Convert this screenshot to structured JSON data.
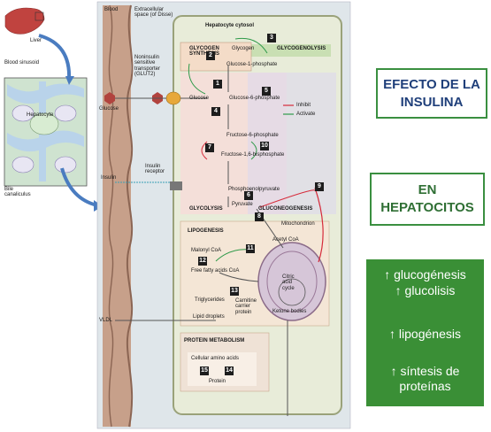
{
  "right_panel": {
    "box1": "EFECTO DE LA INSULINA",
    "box2": "EN HEPATOCITOS",
    "effects": [
      "↑ glucogénesis",
      "↑ glucolisis",
      "↑ lipogénesis",
      "↑ síntesis de proteínas"
    ]
  },
  "inset": {
    "liver": "Liver",
    "blood_sinusoid": "Blood sinusoid",
    "hepatocyte": "Hepatocyte",
    "bile_canaliculus": "Bile canaliculus"
  },
  "diagram": {
    "blood": "Blood",
    "extracellular_space": "Extracellular space (of Disse)",
    "hepatocyte_cytosol": "Hepatocyte cytosol",
    "glycogen_synthesis": "GLYCOGEN SYNTHESIS",
    "glycogen": "Glycogen",
    "glycogenolysis": "GLYCOGENOLYSIS",
    "glucose_1p": "Glucose-1-phosphate",
    "glut2": "Noninsulin sensitive transporter (GLUT2)",
    "glucose_out": "Glucose",
    "glucose_in": "Glucose",
    "glucose_6p": "Glucose-6-phosphate",
    "legend_inhibit": "Inhibit",
    "legend_activate": "Activate",
    "fructose_6p": "Fructose-6-phosphate",
    "fructose_16bp": "Fructose-1,6-bisphosphate",
    "insulin": "Insulin",
    "insulin_receptor": "Insulin receptor",
    "pep": "Phosphoenolpyruvate",
    "glycolysis": "GLYCOLYSIS",
    "pyruvate": "Pyruvate",
    "gluconeogenesis": "GLUCONEOGENESIS",
    "mitochondrion": "Mitochondrion",
    "lipogenesis": "LIPOGENESIS",
    "acetyl_coa": "Acetyl CoA",
    "malonyl_coa": "Malonyl CoA",
    "ffa_coa": "Free fatty acids CoA",
    "citric_acid_cycle": "Citric acid cycle",
    "triglycerides": "Triglycerides",
    "carnitine": "Carnitine carrier protein",
    "vldl": "VLDL",
    "lipid_droplets": "Lipid droplets",
    "ketone_bodies": "Ketone bodies",
    "protein_metabolism": "PROTEIN METABOLISM",
    "amino_acids": "Cellular amino acids",
    "protein": "Protein",
    "numbers": [
      "1",
      "2",
      "3",
      "4",
      "5",
      "6",
      "7",
      "8",
      "9",
      "10",
      "11",
      "12",
      "13",
      "14",
      "15"
    ]
  },
  "colors": {
    "green": "#3a8f36",
    "blood_column": "#c9a38c",
    "cytosol": "#e9ecdc",
    "inhibit": "#d62a3a",
    "activate": "#2f9a4a"
  }
}
